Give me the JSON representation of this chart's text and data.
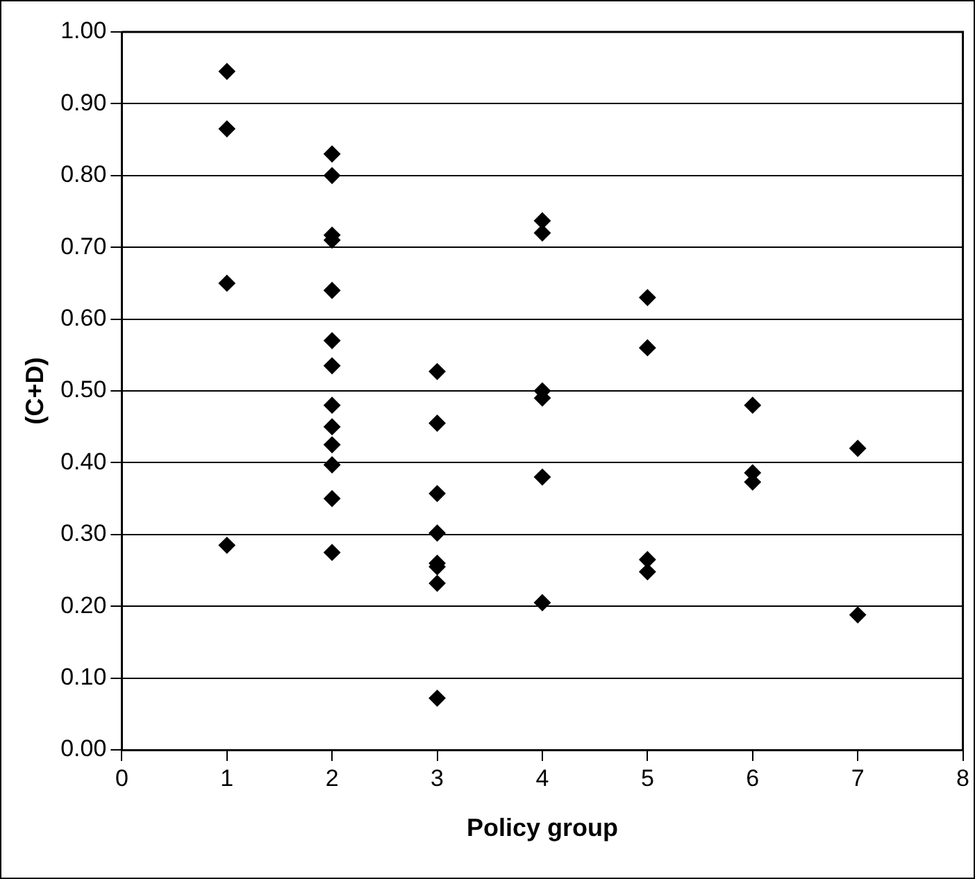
{
  "chart_data": {
    "type": "scatter",
    "xlabel": "Policy group",
    "ylabel": "(C+D)",
    "x": [
      1,
      1,
      1,
      1,
      2,
      2,
      2,
      2,
      2,
      2,
      2,
      2,
      2,
      2,
      2,
      2,
      2,
      3,
      3,
      3,
      3,
      3,
      3,
      3,
      3,
      4,
      4,
      4,
      4,
      4,
      4,
      5,
      5,
      5,
      5,
      6,
      6,
      6,
      7,
      7
    ],
    "values": [
      0.945,
      0.865,
      0.65,
      0.285,
      0.83,
      0.8,
      0.717,
      0.71,
      0.64,
      0.57,
      0.535,
      0.48,
      0.45,
      0.425,
      0.397,
      0.35,
      0.275,
      0.527,
      0.455,
      0.357,
      0.302,
      0.26,
      0.255,
      0.232,
      0.072,
      0.737,
      0.72,
      0.5,
      0.49,
      0.38,
      0.205,
      0.63,
      0.56,
      0.265,
      0.248,
      0.48,
      0.386,
      0.373,
      0.42,
      0.188
    ],
    "color": "#000000",
    "marker": "diamond",
    "xlim": [
      0,
      8
    ],
    "xticks": [
      0,
      1,
      2,
      3,
      4,
      5,
      6,
      7,
      8
    ],
    "ylim": [
      0,
      1
    ],
    "yticks": [
      {
        "value": 0,
        "label": "0.00"
      },
      {
        "value": 0.1,
        "label": "0.10"
      },
      {
        "value": 0.2,
        "label": "0.20"
      },
      {
        "value": 0.3,
        "label": "0.30"
      },
      {
        "value": 0.4,
        "label": "0.40"
      },
      {
        "value": 0.5,
        "label": "0.50"
      },
      {
        "value": 0.6,
        "label": "0.60"
      },
      {
        "value": 0.7,
        "label": "0.70"
      },
      {
        "value": 0.8,
        "label": "0.80"
      },
      {
        "value": 0.9,
        "label": "0.90"
      },
      {
        "value": 1,
        "label": "1.00"
      }
    ],
    "grid": "y",
    "legend": false
  }
}
